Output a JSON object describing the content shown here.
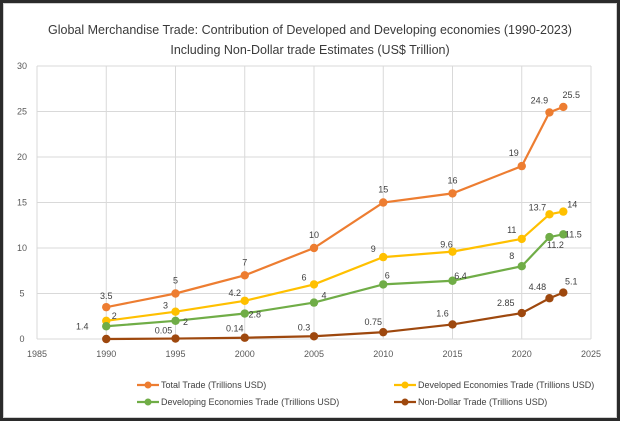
{
  "chart_data": {
    "type": "line",
    "title": "Global Merchandise Trade: Contribution of Developed and Developing economies (1990-2023)",
    "subtitle": "Including Non-Dollar trade Estimates (US$ Trillion)",
    "xlabel": "",
    "ylabel": "",
    "xlim": [
      1985,
      2025
    ],
    "ylim": [
      0,
      30
    ],
    "xticks": [
      1985,
      1990,
      1995,
      2000,
      2005,
      2010,
      2015,
      2020,
      2025
    ],
    "yticks": [
      0,
      5,
      10,
      15,
      20,
      25,
      30
    ],
    "grid": true,
    "legend_position": "bottom",
    "x": [
      1990,
      1995,
      2000,
      2005,
      2010,
      2015,
      2020,
      2022,
      2023
    ],
    "series": [
      {
        "name": "Total Trade (Trillions USD)",
        "color": "#ED7D31",
        "values": [
          3.5,
          5,
          7,
          10,
          15,
          16,
          19,
          24.9,
          25.5
        ],
        "labels": [
          "3.5",
          "5",
          "7",
          "10",
          "15",
          "16",
          "19",
          "24.9",
          "25.5"
        ]
      },
      {
        "name": "Developed Economies Trade (Trillions USD)",
        "color": "#FFC000",
        "values": [
          2,
          3,
          4.2,
          6,
          9,
          9.6,
          11,
          13.7,
          14
        ],
        "labels": [
          "2",
          "3",
          "4.2",
          "6",
          "9",
          "9.6",
          "11",
          "13.7",
          "14"
        ]
      },
      {
        "name": "Developing Economies Trade (Trillions USD)",
        "color": "#70AD47",
        "values": [
          1.4,
          2,
          2.8,
          4,
          6,
          6.4,
          8,
          11.2,
          11.5
        ],
        "labels": [
          "1.4",
          "2",
          "2.8",
          "4",
          "6",
          "6.4",
          "8",
          "11.2",
          "11.5"
        ]
      },
      {
        "name": "Non-Dollar Trade (Trillions USD)",
        "color": "#9E480E",
        "values": [
          0,
          0.05,
          0.14,
          0.3,
          0.75,
          1.6,
          2.85,
          4.48,
          5.1
        ],
        "labels": [
          null,
          "0.05",
          "0.14",
          "0.3",
          "0.75",
          "1.6",
          "2.85",
          "4.48",
          "5.1"
        ]
      }
    ]
  },
  "colors": {
    "grid": "#d9d9d9",
    "frame_border": "#2b2b2b"
  }
}
